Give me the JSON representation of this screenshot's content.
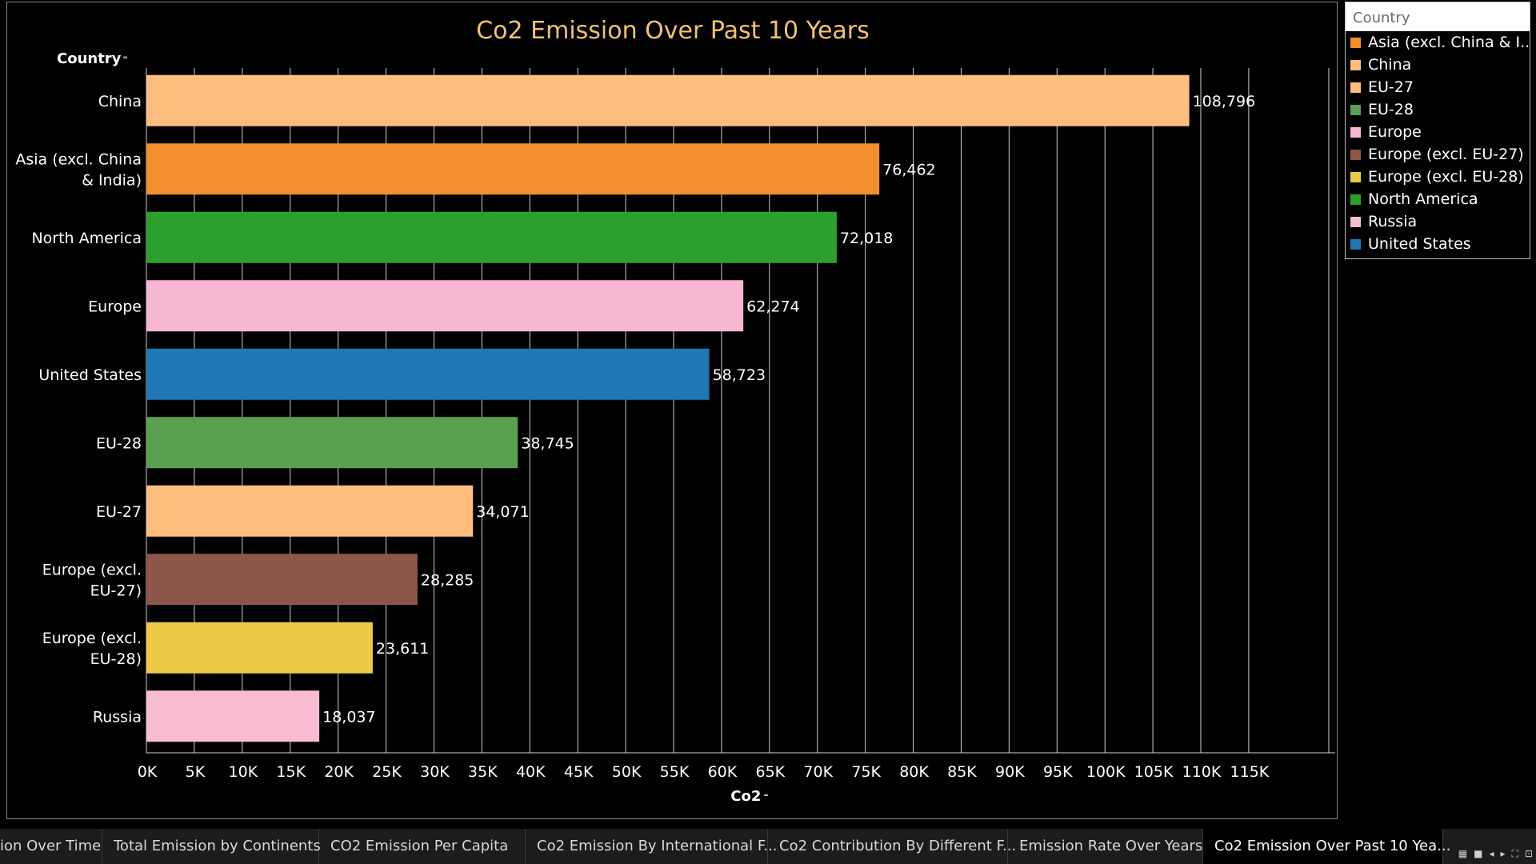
{
  "chart_data": {
    "type": "bar",
    "orientation": "horizontal",
    "title": "Co2 Emission Over Past 10 Years",
    "ylabel": "Country",
    "xlabel": "Co2",
    "xlim": [
      0,
      120000
    ],
    "grid": true,
    "legend_position": "right",
    "x_ticks": [
      "0K",
      "5K",
      "10K",
      "15K",
      "20K",
      "25K",
      "30K",
      "35K",
      "40K",
      "45K",
      "50K",
      "55K",
      "60K",
      "65K",
      "70K",
      "75K",
      "80K",
      "85K",
      "90K",
      "95K",
      "100K",
      "105K",
      "110K",
      "115K"
    ],
    "categories": [
      "China",
      "Asia (excl. China & India)",
      "North America",
      "Europe",
      "United States",
      "EU-28",
      "EU-27",
      "Europe (excl. EU-27)",
      "Europe (excl. EU-28)",
      "Russia"
    ],
    "category_label_lines": [
      [
        "China"
      ],
      [
        "Asia (excl. China",
        "& India)"
      ],
      [
        "North America"
      ],
      [
        "Europe"
      ],
      [
        "United States"
      ],
      [
        "EU-28"
      ],
      [
        "EU-27"
      ],
      [
        "Europe (excl.",
        "EU-27)"
      ],
      [
        "Europe (excl.",
        "EU-28)"
      ],
      [
        "Russia"
      ]
    ],
    "values": [
      108796,
      76462,
      72018,
      62274,
      58723,
      38745,
      34071,
      28285,
      23611,
      18037
    ],
    "value_labels": [
      "108,796",
      "76,462",
      "72,018",
      "62,274",
      "58,723",
      "38,745",
      "34,071",
      "28,285",
      "23,611",
      "18,037"
    ],
    "colors": [
      "#ffbe7d",
      "#f28e2b",
      "#2ca02c",
      "#f7b6d2",
      "#1f77b4",
      "#59a14f",
      "#ffbe7d",
      "#8c564b",
      "#edc948",
      "#f9bcd3"
    ]
  },
  "legend": {
    "title": "Country",
    "items": [
      {
        "label": "Asia (excl. China & I..",
        "color": "#f28e2b"
      },
      {
        "label": "China",
        "color": "#ffbe7d"
      },
      {
        "label": "EU-27",
        "color": "#ffbe7d"
      },
      {
        "label": "EU-28",
        "color": "#59a14f"
      },
      {
        "label": "Europe",
        "color": "#f7b6d2"
      },
      {
        "label": "Europe (excl. EU-27)",
        "color": "#8c564b"
      },
      {
        "label": "Europe (excl. EU-28)",
        "color": "#edc948"
      },
      {
        "label": "North America",
        "color": "#2ca02c"
      },
      {
        "label": "Russia",
        "color": "#f9bcd3"
      },
      {
        "label": "United States",
        "color": "#1f77b4"
      }
    ]
  },
  "tabs": [
    {
      "label": "ion Over Time",
      "active": false
    },
    {
      "label": "Total Emission by Continents",
      "active": false
    },
    {
      "label": "CO2 Emission Per Capita",
      "active": false
    },
    {
      "label": "Co2 Emission By International  F...",
      "active": false
    },
    {
      "label": "Co2 Contribution By Different F...",
      "active": false
    },
    {
      "label": "Emission Rate Over Years",
      "active": false
    },
    {
      "label": "Co2 Emission Over Past 10 Yea...",
      "active": true
    }
  ],
  "tab_controls": {
    "icons": [
      "grid-view-icon",
      "single-view-icon",
      "prev-icon",
      "next-icon",
      "fullscreen-icon",
      "present-icon"
    ],
    "glyphs": [
      "▦",
      "■",
      "◂",
      "▸",
      "⛶",
      "⊡"
    ]
  }
}
